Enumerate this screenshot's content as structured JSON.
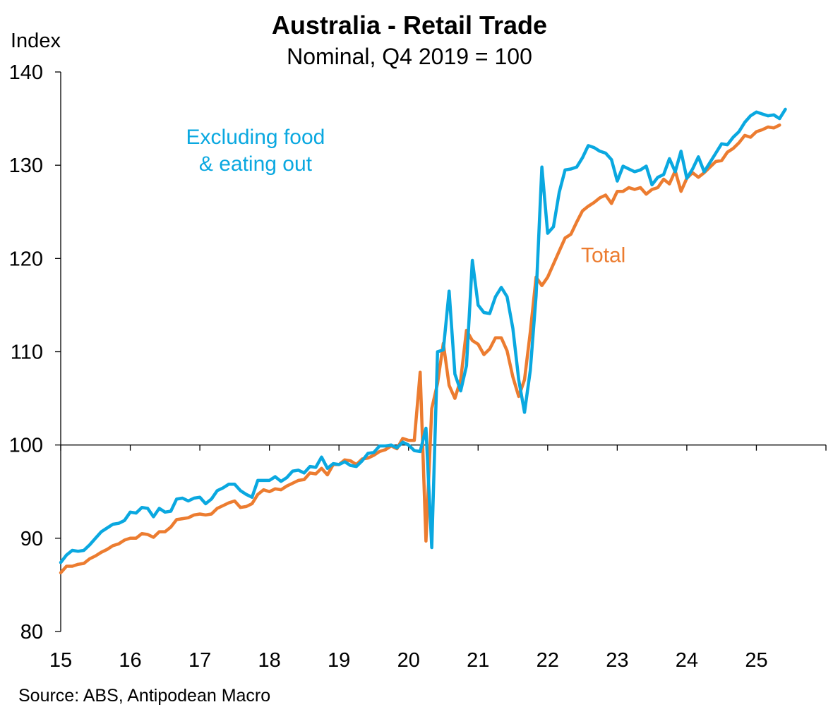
{
  "chart_data": {
    "type": "line",
    "title": "Australia - Retail Trade",
    "subtitle": "Nominal, Q4 2019 = 100",
    "ylabel": "Index",
    "xlabel": "",
    "ylim": [
      80,
      140
    ],
    "yticks": [
      80,
      90,
      100,
      110,
      120,
      130,
      140
    ],
    "xlim": [
      2015,
      2026
    ],
    "xticks": [
      {
        "value": 2015,
        "label": "15"
      },
      {
        "value": 2016,
        "label": "16"
      },
      {
        "value": 2017,
        "label": "17"
      },
      {
        "value": 2018,
        "label": "18"
      },
      {
        "value": 2019,
        "label": "19"
      },
      {
        "value": 2020,
        "label": "20"
      },
      {
        "value": 2021,
        "label": "21"
      },
      {
        "value": 2022,
        "label": "22"
      },
      {
        "value": 2023,
        "label": "23"
      },
      {
        "value": 2024,
        "label": "24"
      },
      {
        "value": 2025,
        "label": "25"
      }
    ],
    "baseline": 100,
    "grid": false,
    "source": "Source: ABS, Antipodean Macro",
    "series": [
      {
        "name": "Excluding food & eating out",
        "label_lines": [
          "Excluding food",
          "& eating out"
        ],
        "color": "#0aa8e0",
        "start": 2015.0,
        "step": 0.0833333,
        "values": [
          87.4,
          88.2,
          88.7,
          88.6,
          88.7,
          89.3,
          90.0,
          90.7,
          91.1,
          91.5,
          91.6,
          91.9,
          92.8,
          92.7,
          93.3,
          93.2,
          92.3,
          93.2,
          92.8,
          92.9,
          94.2,
          94.3,
          94.0,
          94.3,
          94.4,
          93.7,
          94.2,
          95.1,
          95.4,
          95.8,
          95.8,
          95.1,
          94.7,
          94.4,
          96.2,
          96.2,
          96.2,
          96.6,
          96.1,
          96.5,
          97.2,
          97.3,
          97.0,
          97.7,
          97.6,
          98.7,
          97.5,
          98.0,
          97.9,
          98.2,
          97.8,
          97.7,
          98.3,
          99.1,
          99.2,
          99.9,
          99.9,
          100.0,
          99.7,
          100.3,
          100.0,
          99.4,
          99.3,
          101.8,
          89.0,
          110.0,
          110.2,
          116.5,
          107.6,
          105.8,
          108.5,
          119.8,
          115.0,
          114.2,
          114.1,
          115.9,
          116.9,
          115.9,
          112.5,
          107.0,
          103.5,
          108.0,
          116.0,
          129.8,
          122.7,
          123.4,
          127.1,
          129.5,
          129.6,
          129.8,
          130.8,
          132.1,
          131.9,
          131.5,
          131.3,
          130.6,
          128.3,
          129.9,
          129.6,
          129.3,
          129.5,
          129.9,
          127.9,
          128.7,
          129.0,
          130.7,
          129.3,
          131.5,
          128.6,
          129.6,
          130.9,
          129.3,
          130.3,
          131.3,
          132.3,
          132.2,
          133.0,
          133.6,
          134.6,
          135.3,
          135.7,
          135.5,
          135.3,
          135.4,
          135.0,
          136.0
        ]
      },
      {
        "name": "Total",
        "label_lines": [
          "Total"
        ],
        "color": "#ec7c30",
        "start": 2015.0,
        "step": 0.0833333,
        "values": [
          86.3,
          87.0,
          87.0,
          87.2,
          87.3,
          87.8,
          88.1,
          88.5,
          88.8,
          89.2,
          89.4,
          89.8,
          90.0,
          90.0,
          90.5,
          90.4,
          90.1,
          90.7,
          90.7,
          91.2,
          92.0,
          92.1,
          92.2,
          92.5,
          92.6,
          92.5,
          92.6,
          93.2,
          93.5,
          93.8,
          94.0,
          93.3,
          93.4,
          93.7,
          94.7,
          95.2,
          95.0,
          95.3,
          95.2,
          95.6,
          95.9,
          96.2,
          96.3,
          97.0,
          96.9,
          97.5,
          96.8,
          97.9,
          97.9,
          98.4,
          98.3,
          97.9,
          98.5,
          98.6,
          98.9,
          99.3,
          99.5,
          99.9,
          99.6,
          100.7,
          100.5,
          100.5,
          107.8,
          89.7,
          103.9,
          106.6,
          110.9,
          106.4,
          105.0,
          107.0,
          112.3,
          111.2,
          110.8,
          109.7,
          110.3,
          111.5,
          111.5,
          110.1,
          107.3,
          105.2,
          107.0,
          112.1,
          118.0,
          117.1,
          118.0,
          119.4,
          120.8,
          122.2,
          122.6,
          123.9,
          125.1,
          125.6,
          126.0,
          126.5,
          126.8,
          125.9,
          127.2,
          127.2,
          127.6,
          127.4,
          127.6,
          126.9,
          127.4,
          127.6,
          128.5,
          128.0,
          129.4,
          127.2,
          128.6,
          129.2,
          128.7,
          129.2,
          129.8,
          130.4,
          130.5,
          131.4,
          131.8,
          132.4,
          133.2,
          133.0,
          133.6,
          133.8,
          134.1,
          134.0,
          134.3
        ]
      }
    ],
    "annotations": [
      {
        "series": 0,
        "lines": [
          "Excluding food",
          "& eating out"
        ],
        "x": 2017.8,
        "y": 132.3
      },
      {
        "series": 1,
        "lines": [
          "Total"
        ],
        "x": 2022.8,
        "y": 119.6
      }
    ]
  }
}
